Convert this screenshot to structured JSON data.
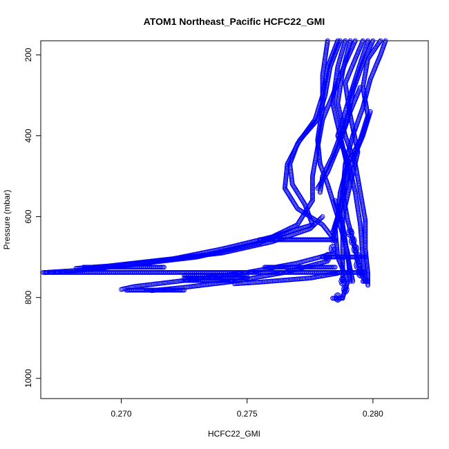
{
  "chart_data": {
    "type": "scatter",
    "title": "ATOM1 Northeast_Pacific HCFC22_GMI",
    "xlabel": "HCFC22_GMI",
    "ylabel": "Pressure (mbar)",
    "xlim": [
      0.2668,
      0.2822
    ],
    "ylim": [
      1050,
      165
    ],
    "y_reversed": true,
    "grid": false,
    "marker": "open-circle",
    "marker_color": "#0000ff",
    "x_ticks": [
      {
        "value": 0.27,
        "label": "0.270"
      },
      {
        "value": 0.275,
        "label": "0.275"
      },
      {
        "value": 0.28,
        "label": "0.280"
      }
    ],
    "y_ticks": [
      {
        "value": 200,
        "label": "200"
      },
      {
        "value": 400,
        "label": "400"
      },
      {
        "value": 600,
        "label": "600"
      },
      {
        "value": 800,
        "label": "800"
      },
      {
        "value": 1000,
        "label": "1000"
      }
    ],
    "profiles": [
      [
        [
          0.2805,
          165
        ],
        [
          0.2803,
          200
        ],
        [
          0.2799,
          260
        ],
        [
          0.2796,
          330
        ],
        [
          0.2792,
          400
        ],
        [
          0.2789,
          470
        ],
        [
          0.2788,
          540
        ],
        [
          0.279,
          610
        ],
        [
          0.2793,
          680
        ],
        [
          0.2795,
          740
        ],
        [
          0.2797,
          760
        ]
      ],
      [
        [
          0.28,
          165
        ],
        [
          0.2796,
          220
        ],
        [
          0.2792,
          290
        ],
        [
          0.279,
          360
        ],
        [
          0.2786,
          430
        ],
        [
          0.2782,
          490
        ],
        [
          0.2778,
          530
        ]
      ],
      [
        [
          0.2793,
          165
        ],
        [
          0.2789,
          220
        ],
        [
          0.2784,
          300
        ],
        [
          0.278,
          360
        ],
        [
          0.2778,
          430
        ],
        [
          0.2776,
          500
        ],
        [
          0.2776,
          560
        ],
        [
          0.277,
          620
        ],
        [
          0.2755,
          665
        ],
        [
          0.273,
          700
        ],
        [
          0.27,
          722
        ],
        [
          0.2685,
          732
        ],
        [
          0.267,
          738
        ]
      ],
      [
        [
          0.2787,
          165
        ],
        [
          0.2783,
          230
        ],
        [
          0.2781,
          300
        ],
        [
          0.2778,
          360
        ],
        [
          0.2771,
          410
        ],
        [
          0.2766,
          470
        ],
        [
          0.2765,
          530
        ],
        [
          0.277,
          580
        ],
        [
          0.278,
          620
        ],
        [
          0.2785,
          660
        ]
      ],
      [
        [
          0.2786,
          165
        ],
        [
          0.2782,
          230
        ],
        [
          0.278,
          300
        ],
        [
          0.2777,
          360
        ],
        [
          0.277,
          420
        ],
        [
          0.2767,
          470
        ],
        [
          0.2768,
          520
        ],
        [
          0.2773,
          570
        ],
        [
          0.2776,
          620
        ],
        [
          0.276,
          650
        ],
        [
          0.274,
          680
        ],
        [
          0.272,
          705
        ],
        [
          0.2695,
          725
        ],
        [
          0.2685,
          730
        ]
      ],
      [
        [
          0.2791,
          165
        ],
        [
          0.2788,
          240
        ],
        [
          0.2786,
          320
        ],
        [
          0.2789,
          400
        ],
        [
          0.2793,
          470
        ],
        [
          0.2795,
          540
        ],
        [
          0.2797,
          610
        ],
        [
          0.2797,
          680
        ],
        [
          0.2798,
          740
        ],
        [
          0.2798,
          770
        ]
      ],
      [
        [
          0.2798,
          165
        ],
        [
          0.2794,
          240
        ],
        [
          0.279,
          320
        ],
        [
          0.2786,
          400
        ],
        [
          0.279,
          460
        ],
        [
          0.2793,
          540
        ],
        [
          0.2795,
          620
        ],
        [
          0.2796,
          700
        ],
        [
          0.2797,
          760
        ]
      ],
      [
        [
          0.2803,
          165
        ],
        [
          0.2798,
          210
        ],
        [
          0.2796,
          280
        ],
        [
          0.2798,
          350
        ],
        [
          0.2795,
          410
        ],
        [
          0.279,
          470
        ],
        [
          0.2787,
          540
        ],
        [
          0.2786,
          600
        ],
        [
          0.2784,
          660
        ]
      ],
      [
        [
          0.2789,
          165
        ],
        [
          0.2786,
          230
        ],
        [
          0.2784,
          320
        ],
        [
          0.2787,
          400
        ],
        [
          0.279,
          480
        ],
        [
          0.2788,
          560
        ],
        [
          0.2785,
          630
        ],
        [
          0.2786,
          700
        ],
        [
          0.279,
          760
        ],
        [
          0.2788,
          800
        ]
      ],
      [
        [
          0.2782,
          165
        ],
        [
          0.278,
          250
        ],
        [
          0.278,
          330
        ],
        [
          0.2778,
          410
        ],
        [
          0.2779,
          470
        ],
        [
          0.2782,
          520
        ],
        [
          0.2786,
          600
        ],
        [
          0.279,
          690
        ],
        [
          0.2791,
          760
        ]
      ],
      [
        [
          0.2796,
          165
        ],
        [
          0.2793,
          210
        ],
        [
          0.2789,
          270
        ],
        [
          0.2791,
          350
        ],
        [
          0.2794,
          440
        ],
        [
          0.2791,
          520
        ],
        [
          0.2788,
          600
        ],
        [
          0.2788,
          690
        ],
        [
          0.2788,
          760
        ]
      ],
      [
        [
          0.2785,
          560
        ],
        [
          0.2788,
          620
        ],
        [
          0.279,
          700
        ],
        [
          0.2792,
          760
        ]
      ],
      [
        [
          0.2795,
          280
        ],
        [
          0.2791,
          340
        ],
        [
          0.2787,
          400
        ],
        [
          0.2784,
          450
        ],
        [
          0.278,
          500
        ],
        [
          0.2779,
          540
        ]
      ],
      [
        [
          0.2799,
          340
        ],
        [
          0.2796,
          400
        ],
        [
          0.2792,
          460
        ],
        [
          0.2789,
          520
        ],
        [
          0.2787,
          580
        ],
        [
          0.2784,
          640
        ]
      ],
      [
        [
          0.278,
          600
        ],
        [
          0.2775,
          630
        ],
        [
          0.276,
          662
        ],
        [
          0.274,
          690
        ],
        [
          0.2715,
          708
        ],
        [
          0.2695,
          722
        ],
        [
          0.2682,
          728
        ]
      ],
      [
        [
          0.2785,
          690
        ],
        [
          0.277,
          715
        ],
        [
          0.275,
          738
        ],
        [
          0.2725,
          758
        ],
        [
          0.2705,
          773
        ],
        [
          0.27,
          780
        ]
      ],
      [
        [
          0.2782,
          710
        ],
        [
          0.2765,
          738
        ],
        [
          0.2745,
          760
        ],
        [
          0.2725,
          775
        ],
        [
          0.2712,
          783
        ]
      ],
      [
        [
          0.2786,
          740
        ],
        [
          0.2775,
          752
        ],
        [
          0.2755,
          762
        ],
        [
          0.2745,
          766
        ]
      ]
    ],
    "segments": [
      {
        "x": [
          0.2669,
          0.2797
        ],
        "y": 738
      },
      {
        "x": [
          0.2685,
          0.2717
        ],
        "y": 725
      },
      {
        "x": [
          0.2757,
          0.2785
        ],
        "y": 725
      },
      {
        "x": [
          0.2755,
          0.2785
        ],
        "y": 657
      },
      {
        "x": [
          0.278,
          0.2797
        ],
        "y": 700
      },
      {
        "x": [
          0.2702,
          0.2717
        ],
        "y": 782
      },
      {
        "x": [
          0.271,
          0.2725
        ],
        "y": 782
      },
      {
        "x": [
          0.2725,
          0.275
        ],
        "y": 745
      },
      {
        "x": [
          0.2725,
          0.275
        ],
        "y": 752
      },
      {
        "x": [
          0.2725,
          0.2745
        ],
        "y": 758
      },
      {
        "x": [
          0.2784,
          0.2788
        ],
        "y": 802
      },
      {
        "x": [
          0.2796,
          0.2798
        ],
        "y": 760
      }
    ],
    "blobs": [
      [
        0.2791,
        640
      ],
      [
        0.2792,
        660
      ],
      [
        0.2793,
        680
      ],
      [
        0.2794,
        700
      ],
      [
        0.2794,
        720
      ],
      [
        0.2795,
        740
      ],
      [
        0.2788,
        760
      ],
      [
        0.2789,
        780
      ],
      [
        0.2786,
        800
      ],
      [
        0.2782,
        700
      ],
      [
        0.2784,
        680
      ]
    ]
  }
}
